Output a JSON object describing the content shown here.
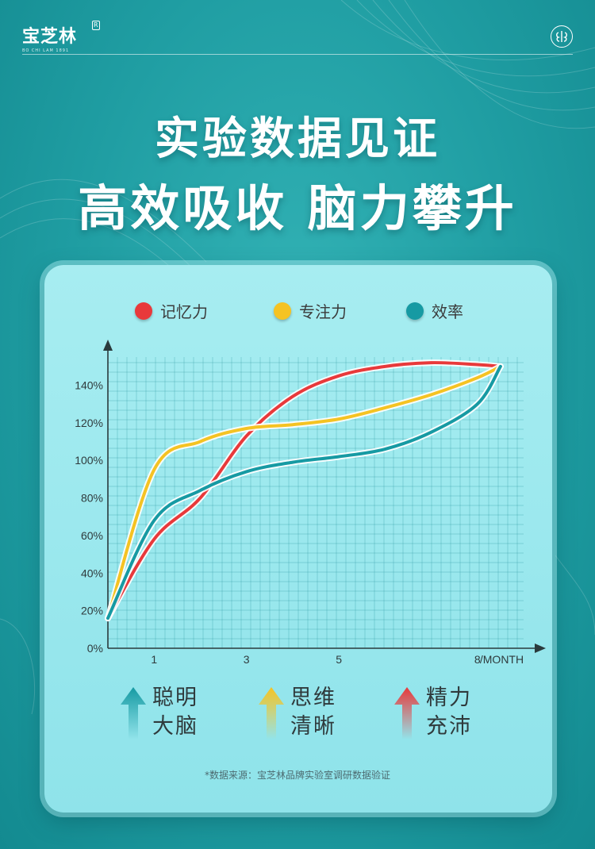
{
  "brand": {
    "logo_text": "宝芝林",
    "logo_sub": "BO CHI LAM 1891",
    "registered_mark": "R"
  },
  "headline": {
    "line1": "实验数据见证",
    "line2": "高效吸收 脑力攀升"
  },
  "chart_data": {
    "type": "line",
    "x": [
      0,
      1,
      2,
      3,
      4,
      5,
      6,
      7,
      8,
      8.5
    ],
    "x_ticks": [
      "1",
      "3",
      "5",
      "8"
    ],
    "x_tick_values": [
      1,
      3,
      5,
      8
    ],
    "x_unit_label": "/MONTH",
    "y_ticks": [
      "0%",
      "20%",
      "40%",
      "60%",
      "80%",
      "100%",
      "120%",
      "140%"
    ],
    "y_tick_values": [
      0,
      20,
      40,
      60,
      80,
      100,
      120,
      140
    ],
    "ylim": [
      0,
      155
    ],
    "xlim": [
      0,
      9
    ],
    "grid": true,
    "legend_position": "top",
    "series": [
      {
        "name": "记忆力",
        "color": "#e8393b",
        "values": [
          16,
          58,
          80,
          113,
          134,
          145,
          150,
          152,
          151,
          150
        ]
      },
      {
        "name": "专注力",
        "color": "#f5c323",
        "values": [
          16,
          95,
          110,
          117,
          119,
          122,
          128,
          135,
          144,
          150
        ]
      },
      {
        "name": "效率",
        "color": "#169aa3",
        "values": [
          16,
          68,
          84,
          94,
          99,
          102,
          106,
          115,
          130,
          150
        ]
      }
    ]
  },
  "features": [
    {
      "line1": "聪明",
      "line2": "大脑",
      "color": "#169aa3"
    },
    {
      "line1": "思维",
      "line2": "清晰",
      "color": "#f5c323"
    },
    {
      "line1": "精力",
      "line2": "充沛",
      "color": "#e8393b"
    }
  ],
  "source_note": "*数据来源：宝芝林品牌实验室调研数据验证"
}
